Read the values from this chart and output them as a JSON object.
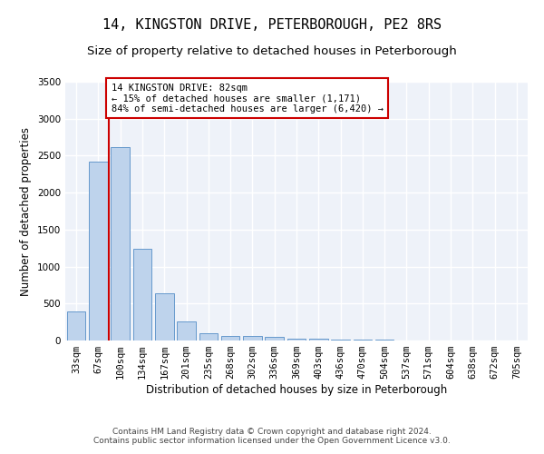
{
  "title": "14, KINGSTON DRIVE, PETERBOROUGH, PE2 8RS",
  "subtitle": "Size of property relative to detached houses in Peterborough",
  "xlabel": "Distribution of detached houses by size in Peterborough",
  "ylabel": "Number of detached properties",
  "categories": [
    "33sqm",
    "67sqm",
    "100sqm",
    "134sqm",
    "167sqm",
    "201sqm",
    "235sqm",
    "268sqm",
    "302sqm",
    "336sqm",
    "369sqm",
    "403sqm",
    "436sqm",
    "470sqm",
    "504sqm",
    "537sqm",
    "571sqm",
    "604sqm",
    "638sqm",
    "672sqm",
    "705sqm"
  ],
  "values": [
    390,
    2420,
    2610,
    1240,
    640,
    260,
    100,
    65,
    60,
    45,
    30,
    20,
    15,
    10,
    8,
    5,
    4,
    3,
    2,
    2,
    1
  ],
  "bar_color": "#bed3ec",
  "bar_edge_color": "#6699cc",
  "property_sqm": 82,
  "pct_smaller": 15,
  "n_smaller": 1171,
  "pct_larger_semi": 84,
  "n_larger_semi": 6420,
  "annotation_box_color": "#cc0000",
  "vline_color": "#cc0000",
  "background_color": "#eef2f9",
  "grid_color": "#ffffff",
  "ylim": [
    0,
    3500
  ],
  "yticks": [
    0,
    500,
    1000,
    1500,
    2000,
    2500,
    3000,
    3500
  ],
  "footnote": "Contains HM Land Registry data © Crown copyright and database right 2024.\nContains public sector information licensed under the Open Government Licence v3.0.",
  "title_fontsize": 11,
  "subtitle_fontsize": 9.5,
  "axis_label_fontsize": 8.5,
  "tick_fontsize": 7.5,
  "footnote_fontsize": 6.5
}
